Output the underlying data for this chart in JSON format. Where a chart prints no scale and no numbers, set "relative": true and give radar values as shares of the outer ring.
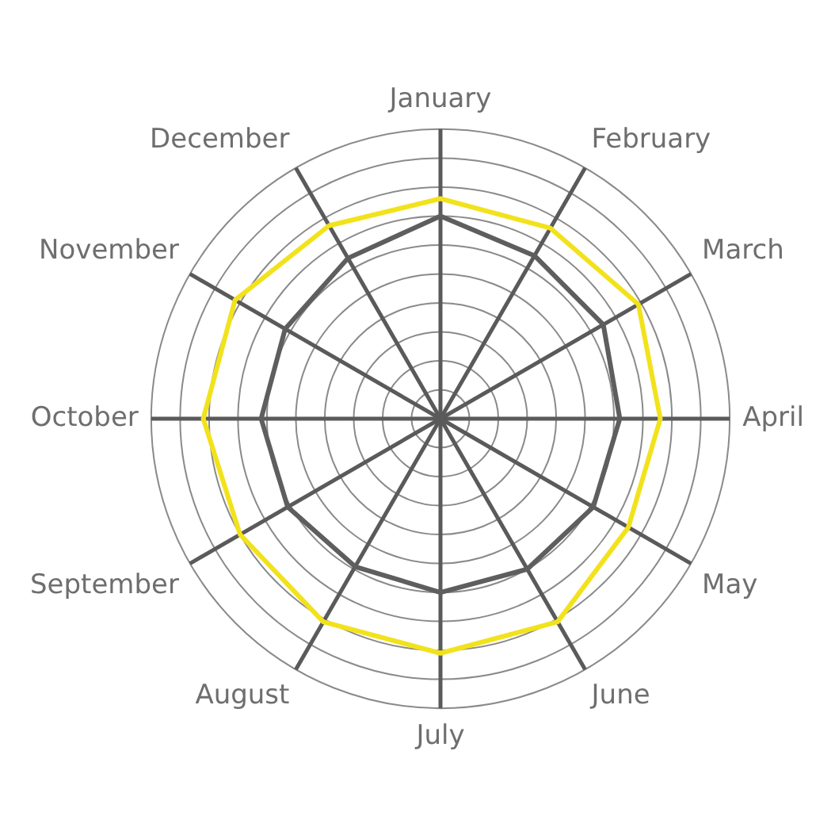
{
  "chart_data": {
    "type": "radar",
    "relative": true,
    "grid": true,
    "legend": false,
    "marker": "none",
    "categories": [
      "January",
      "February",
      "March",
      "April",
      "May",
      "June",
      "July",
      "August",
      "September",
      "October",
      "November",
      "December"
    ],
    "series": [
      {
        "color": "#f2e21c",
        "values": [
          0.76,
          0.76,
          0.79,
          0.76,
          0.75,
          0.81,
          0.81,
          0.81,
          0.8,
          0.82,
          0.82,
          0.77
        ]
      },
      {
        "color": "#5e5e5e",
        "values": [
          0.7,
          0.65,
          0.65,
          0.62,
          0.61,
          0.6,
          0.6,
          0.59,
          0.61,
          0.62,
          0.62,
          0.64
        ]
      }
    ]
  }
}
